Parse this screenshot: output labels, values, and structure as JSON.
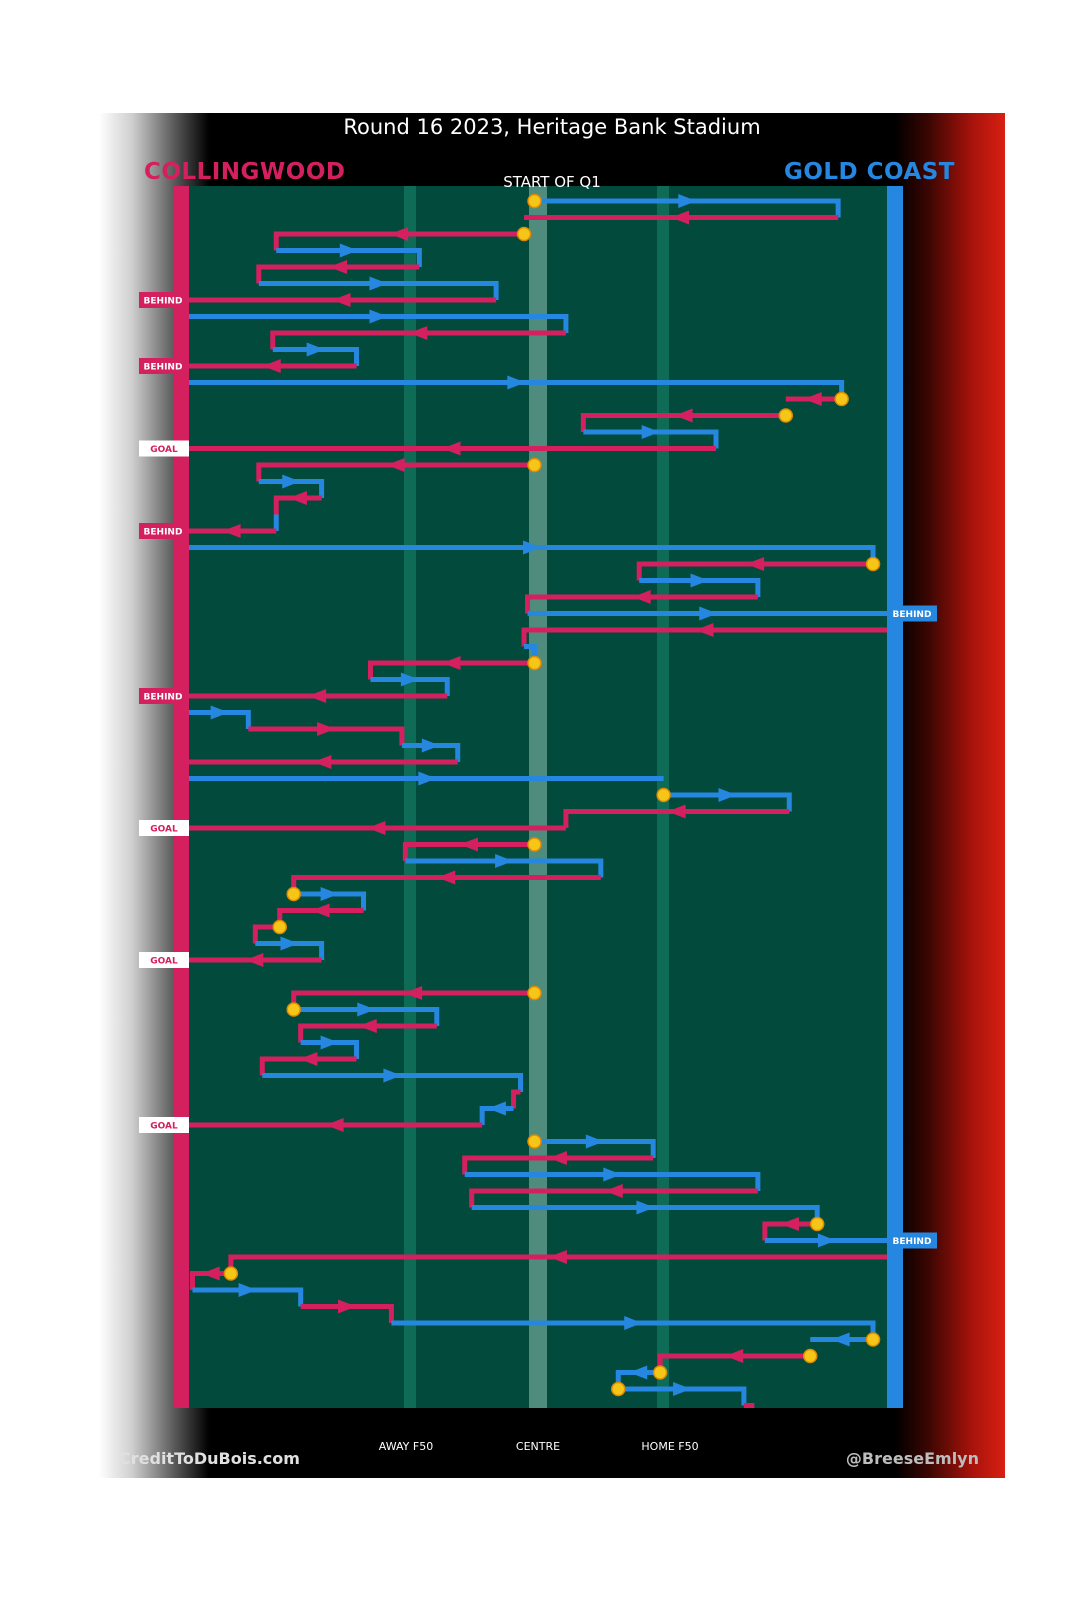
{
  "title": "Round 16 2023, Heritage Bank Stadium",
  "teams": {
    "home": "COLLINGWOOD",
    "away": "GOLD COAST"
  },
  "start_label": "START OF Q1",
  "axis_labels": {
    "away_f50": "AWAY F50",
    "centre": "CENTRE",
    "home_f50": "HOME F50"
  },
  "credits": {
    "left": "CreditToDuBois.com",
    "right": "@BreeseEmlyn"
  },
  "colors": {
    "collingwood": "#d4205f",
    "gold_coast": "#2687e0",
    "field": "#024a3c",
    "stoppage": "#f5c518"
  },
  "chart_data": {
    "type": "line",
    "x_axis": "field position (0 = Collingwood goal line, 1 = Gold Coast goal line)",
    "x_ticks": [
      {
        "x": 0.31,
        "label": "AWAY F50"
      },
      {
        "x": 0.495,
        "label": "CENTRE"
      },
      {
        "x": 0.675,
        "label": "HOME F50"
      }
    ],
    "chains": [
      {
        "team": "gc",
        "pts": [
          [
            0.495,
            0
          ],
          [
            0.93,
            0
          ],
          [
            0.93,
            1
          ]
        ],
        "stoppage": true
      },
      {
        "team": "coll",
        "pts": [
          [
            0.93,
            1
          ],
          [
            0.48,
            1
          ]
        ]
      },
      {
        "team": "coll",
        "pts": [
          [
            0.48,
            2
          ],
          [
            0.125,
            2
          ],
          [
            0.125,
            3
          ]
        ],
        "stoppage": true
      },
      {
        "team": "gc",
        "pts": [
          [
            0.125,
            3
          ],
          [
            0.33,
            3
          ],
          [
            0.33,
            4
          ]
        ]
      },
      {
        "team": "coll",
        "pts": [
          [
            0.33,
            4
          ],
          [
            0.1,
            4
          ],
          [
            0.1,
            5
          ]
        ]
      },
      {
        "team": "gc",
        "pts": [
          [
            0.1,
            5
          ],
          [
            0.44,
            5
          ],
          [
            0.44,
            6
          ]
        ]
      },
      {
        "team": "coll",
        "pts": [
          [
            0.44,
            6
          ],
          [
            0,
            6
          ]
        ],
        "result": "BEHIND"
      },
      {
        "team": "gc",
        "pts": [
          [
            0,
            7
          ],
          [
            0.54,
            7
          ],
          [
            0.54,
            8
          ]
        ]
      },
      {
        "team": "coll",
        "pts": [
          [
            0.54,
            8
          ],
          [
            0.12,
            8
          ],
          [
            0.12,
            9
          ]
        ]
      },
      {
        "team": "gc",
        "pts": [
          [
            0.12,
            9
          ],
          [
            0.24,
            9
          ],
          [
            0.24,
            10
          ]
        ]
      },
      {
        "team": "coll",
        "pts": [
          [
            0.24,
            10
          ],
          [
            0,
            10
          ]
        ],
        "result": "BEHIND"
      },
      {
        "team": "gc",
        "pts": [
          [
            0,
            11
          ],
          [
            0.935,
            11
          ],
          [
            0.935,
            12
          ]
        ]
      },
      {
        "team": "coll",
        "pts": [
          [
            0.935,
            12
          ],
          [
            0.855,
            12
          ]
        ],
        "stoppage": true
      },
      {
        "team": "coll",
        "pts": [
          [
            0.855,
            13
          ],
          [
            0.565,
            13
          ],
          [
            0.565,
            14
          ]
        ],
        "stoppage": true
      },
      {
        "team": "gc",
        "pts": [
          [
            0.565,
            14
          ],
          [
            0.755,
            14
          ],
          [
            0.755,
            15
          ]
        ]
      },
      {
        "team": "coll",
        "pts": [
          [
            0.755,
            15
          ],
          [
            0,
            15
          ]
        ],
        "result": "GOAL"
      },
      {
        "team": "coll",
        "pts": [
          [
            0.495,
            16
          ],
          [
            0.1,
            16
          ],
          [
            0.1,
            17
          ]
        ],
        "stoppage": true
      },
      {
        "team": "gc",
        "pts": [
          [
            0.1,
            17
          ],
          [
            0.19,
            17
          ],
          [
            0.19,
            18
          ]
        ]
      },
      {
        "team": "coll",
        "pts": [
          [
            0.19,
            18
          ],
          [
            0.125,
            18
          ],
          [
            0.125,
            19
          ]
        ]
      },
      {
        "team": "gc",
        "pts": [
          [
            0.125,
            19
          ],
          [
            0.125,
            20
          ]
        ]
      },
      {
        "team": "coll",
        "pts": [
          [
            0.125,
            20
          ],
          [
            0,
            20
          ]
        ],
        "result": "BEHIND"
      },
      {
        "team": "gc",
        "pts": [
          [
            0,
            21
          ],
          [
            0.98,
            21
          ],
          [
            0.98,
            22
          ]
        ]
      },
      {
        "team": "coll",
        "pts": [
          [
            0.98,
            22
          ],
          [
            0.645,
            22
          ],
          [
            0.645,
            23
          ]
        ],
        "stoppage": true
      },
      {
        "team": "gc",
        "pts": [
          [
            0.645,
            23
          ],
          [
            0.815,
            23
          ],
          [
            0.815,
            24
          ]
        ]
      },
      {
        "team": "coll",
        "pts": [
          [
            0.815,
            24
          ],
          [
            0.485,
            24
          ],
          [
            0.485,
            25
          ]
        ]
      },
      {
        "team": "gc",
        "pts": [
          [
            0.485,
            25
          ],
          [
            1,
            25
          ]
        ],
        "result": "BEHIND"
      },
      {
        "team": "coll",
        "pts": [
          [
            1,
            26
          ],
          [
            0.48,
            26
          ],
          [
            0.48,
            27
          ]
        ]
      },
      {
        "team": "gc",
        "pts": [
          [
            0.48,
            27
          ],
          [
            0.495,
            27
          ],
          [
            0.495,
            28
          ]
        ]
      },
      {
        "team": "coll",
        "pts": [
          [
            0.495,
            28
          ],
          [
            0.26,
            28
          ],
          [
            0.26,
            29
          ]
        ],
        "stoppage": true
      },
      {
        "team": "gc",
        "pts": [
          [
            0.26,
            29
          ],
          [
            0.37,
            29
          ],
          [
            0.37,
            30
          ]
        ]
      },
      {
        "team": "coll",
        "pts": [
          [
            0.37,
            30
          ],
          [
            0,
            30
          ]
        ],
        "result": "BEHIND"
      },
      {
        "team": "gc",
        "pts": [
          [
            0,
            31
          ],
          [
            0.085,
            31
          ],
          [
            0.085,
            32
          ]
        ]
      },
      {
        "team": "coll",
        "pts": [
          [
            0.085,
            32
          ],
          [
            0.305,
            32
          ],
          [
            0.305,
            33
          ]
        ]
      },
      {
        "team": "gc",
        "pts": [
          [
            0.305,
            33
          ],
          [
            0.385,
            33
          ],
          [
            0.385,
            34
          ]
        ]
      },
      {
        "team": "coll",
        "pts": [
          [
            0.385,
            34
          ],
          [
            0,
            34
          ]
        ]
      },
      {
        "team": "gc",
        "pts": [
          [
            0,
            35
          ],
          [
            0.68,
            35
          ]
        ]
      },
      {
        "team": "gc",
        "pts": [
          [
            0.68,
            36
          ],
          [
            0.86,
            36
          ],
          [
            0.86,
            37
          ]
        ],
        "stoppage": true
      },
      {
        "team": "coll",
        "pts": [
          [
            0.86,
            37
          ],
          [
            0.54,
            37
          ],
          [
            0.54,
            38
          ]
        ]
      },
      {
        "team": "coll",
        "pts": [
          [
            0.54,
            38
          ],
          [
            0,
            38
          ]
        ],
        "result": "GOAL"
      },
      {
        "team": "coll",
        "pts": [
          [
            0.495,
            39
          ],
          [
            0.31,
            39
          ],
          [
            0.31,
            40
          ]
        ],
        "stoppage": true
      },
      {
        "team": "gc",
        "pts": [
          [
            0.31,
            40
          ],
          [
            0.59,
            40
          ],
          [
            0.59,
            41
          ]
        ]
      },
      {
        "team": "coll",
        "pts": [
          [
            0.59,
            41
          ],
          [
            0.15,
            41
          ],
          [
            0.15,
            42
          ]
        ]
      },
      {
        "team": "gc",
        "pts": [
          [
            0.15,
            42
          ],
          [
            0.25,
            42
          ],
          [
            0.25,
            43
          ]
        ],
        "stoppage": true
      },
      {
        "team": "coll",
        "pts": [
          [
            0.25,
            43
          ],
          [
            0.13,
            43
          ],
          [
            0.13,
            44
          ]
        ]
      },
      {
        "team": "coll",
        "pts": [
          [
            0.13,
            44
          ],
          [
            0.095,
            44
          ],
          [
            0.095,
            45
          ]
        ],
        "stoppage": true
      },
      {
        "team": "gc",
        "pts": [
          [
            0.095,
            45
          ],
          [
            0.19,
            45
          ],
          [
            0.19,
            46
          ]
        ]
      },
      {
        "team": "coll",
        "pts": [
          [
            0.19,
            46
          ],
          [
            0,
            46
          ]
        ],
        "result": "GOAL"
      },
      {
        "team": "coll",
        "pts": [
          [
            0.495,
            48
          ],
          [
            0.15,
            48
          ],
          [
            0.15,
            49
          ]
        ],
        "stoppage": true
      },
      {
        "team": "gc",
        "pts": [
          [
            0.15,
            49
          ],
          [
            0.355,
            49
          ],
          [
            0.355,
            50
          ]
        ],
        "stoppage": true
      },
      {
        "team": "coll",
        "pts": [
          [
            0.355,
            50
          ],
          [
            0.16,
            50
          ],
          [
            0.16,
            51
          ]
        ]
      },
      {
        "team": "gc",
        "pts": [
          [
            0.16,
            51
          ],
          [
            0.24,
            51
          ],
          [
            0.24,
            52
          ]
        ]
      },
      {
        "team": "coll",
        "pts": [
          [
            0.24,
            52
          ],
          [
            0.105,
            52
          ],
          [
            0.105,
            53
          ]
        ]
      },
      {
        "team": "gc",
        "pts": [
          [
            0.105,
            53
          ],
          [
            0.475,
            53
          ],
          [
            0.475,
            54
          ]
        ]
      },
      {
        "team": "coll",
        "pts": [
          [
            0.475,
            54
          ],
          [
            0.465,
            54
          ],
          [
            0.465,
            55
          ]
        ]
      },
      {
        "team": "gc",
        "pts": [
          [
            0.465,
            55
          ],
          [
            0.42,
            55
          ],
          [
            0.42,
            56
          ]
        ]
      },
      {
        "team": "coll",
        "pts": [
          [
            0.42,
            56
          ],
          [
            0,
            56
          ]
        ],
        "result": "GOAL"
      },
      {
        "team": "gc",
        "pts": [
          [
            0.495,
            57
          ],
          [
            0.665,
            57
          ],
          [
            0.665,
            58
          ]
        ],
        "stoppage": true
      },
      {
        "team": "coll",
        "pts": [
          [
            0.665,
            58
          ],
          [
            0.395,
            58
          ],
          [
            0.395,
            59
          ]
        ]
      },
      {
        "team": "gc",
        "pts": [
          [
            0.395,
            59
          ],
          [
            0.815,
            59
          ],
          [
            0.815,
            60
          ]
        ]
      },
      {
        "team": "coll",
        "pts": [
          [
            0.815,
            60
          ],
          [
            0.405,
            60
          ],
          [
            0.405,
            61
          ]
        ]
      },
      {
        "team": "gc",
        "pts": [
          [
            0.405,
            61
          ],
          [
            0.9,
            61
          ],
          [
            0.9,
            62
          ]
        ]
      },
      {
        "team": "coll",
        "pts": [
          [
            0.9,
            62
          ],
          [
            0.825,
            62
          ],
          [
            0.825,
            63
          ]
        ],
        "stoppage": true
      },
      {
        "team": "gc",
        "pts": [
          [
            0.825,
            63
          ],
          [
            1,
            63
          ]
        ],
        "result": "BEHIND"
      },
      {
        "team": "coll",
        "pts": [
          [
            1,
            64
          ],
          [
            0.06,
            64
          ],
          [
            0.06,
            65
          ]
        ]
      },
      {
        "team": "coll",
        "pts": [
          [
            0.06,
            65
          ],
          [
            0.005,
            65
          ],
          [
            0.005,
            66
          ]
        ],
        "stoppage": true
      },
      {
        "team": "gc",
        "pts": [
          [
            0.005,
            66
          ],
          [
            0.16,
            66
          ],
          [
            0.16,
            67
          ]
        ]
      },
      {
        "team": "coll",
        "pts": [
          [
            0.16,
            67
          ],
          [
            0.29,
            67
          ],
          [
            0.29,
            68
          ]
        ]
      },
      {
        "team": "gc",
        "pts": [
          [
            0.29,
            68
          ],
          [
            0.98,
            68
          ],
          [
            0.98,
            69
          ]
        ]
      },
      {
        "team": "gc",
        "pts": [
          [
            0.98,
            69
          ],
          [
            0.89,
            69
          ]
        ],
        "stoppage": true
      },
      {
        "team": "coll",
        "pts": [
          [
            0.89,
            70
          ],
          [
            0.675,
            70
          ],
          [
            0.675,
            71
          ]
        ],
        "stoppage": true
      },
      {
        "team": "gc",
        "pts": [
          [
            0.675,
            71
          ],
          [
            0.615,
            71
          ],
          [
            0.615,
            72
          ]
        ],
        "stoppage": true
      },
      {
        "team": "gc",
        "pts": [
          [
            0.615,
            72
          ],
          [
            0.795,
            72
          ],
          [
            0.795,
            73
          ]
        ],
        "stoppage": true
      },
      {
        "team": "coll",
        "pts": [
          [
            0.795,
            73
          ],
          [
            0.81,
            73
          ]
        ]
      }
    ]
  }
}
